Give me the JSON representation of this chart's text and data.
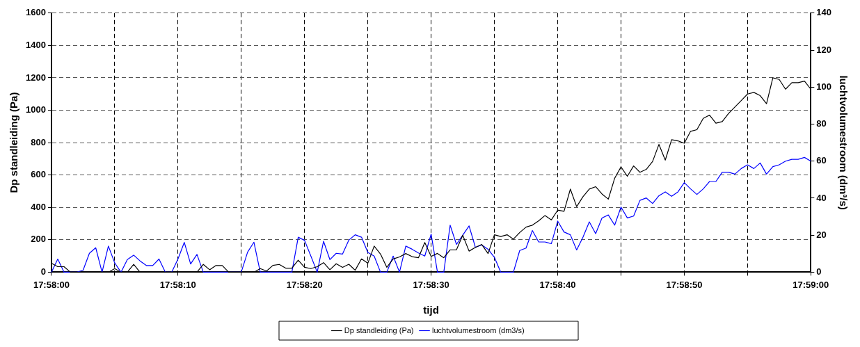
{
  "chart_data": {
    "type": "line",
    "xlabel": "tijd",
    "ylabel": "Dp standleiding (Pa)",
    "y2label": "luchtvolumestroom (dm³/s)",
    "x": [
      17.966667,
      17.966806,
      17.966944,
      17.967083,
      17.967222,
      17.967361,
      17.9675,
      17.967639,
      17.967778,
      17.967917,
      17.968056,
      17.968194,
      17.968333,
      17.968472,
      17.968611,
      17.96875,
      17.968889,
      17.969028,
      17.969167,
      17.969306,
      17.969444,
      17.969583,
      17.969722,
      17.969861,
      17.97,
      17.970139,
      17.970278,
      17.970417,
      17.970556,
      17.970694,
      17.970833,
      17.970972,
      17.971111,
      17.97125,
      17.971389,
      17.971528,
      17.971667,
      17.971806,
      17.971944,
      17.972083,
      17.972222,
      17.972361,
      17.9725,
      17.972639,
      17.972778,
      17.972917,
      17.973056,
      17.973194,
      17.973333,
      17.973472,
      17.973611,
      17.97375,
      17.973889,
      17.974028,
      17.974167,
      17.974306,
      17.974444,
      17.974583,
      17.974722,
      17.974861,
      17.975,
      17.975139,
      17.975278,
      17.975417,
      17.975556,
      17.975694,
      17.975833,
      17.975972,
      17.976111,
      17.97625,
      17.976389,
      17.976528,
      17.976667,
      17.976806,
      17.976944,
      17.977083,
      17.977222,
      17.977361,
      17.9775,
      17.977639,
      17.977778,
      17.977917,
      17.978056,
      17.978194,
      17.978333,
      17.978472,
      17.978611,
      17.97875,
      17.978889,
      17.979028,
      17.979167,
      17.979306,
      17.979444,
      17.979583,
      17.979722,
      17.979861,
      17.98,
      17.980139,
      17.980278,
      17.980417,
      17.980556,
      17.980694,
      17.980833,
      17.980972,
      17.981111,
      17.98125,
      17.981389,
      17.981528,
      17.981667,
      17.981806,
      17.981944,
      17.982083,
      17.982222,
      17.982361,
      17.9825,
      17.982639,
      17.982778,
      17.982917,
      17.983056,
      17.983194,
      17.983333
    ],
    "series": [
      {
        "name": "Dp standleiding (Pa)",
        "color": "#000000",
        "values": [
          55,
          34,
          34,
          0,
          0,
          0,
          0,
          0,
          0,
          0,
          22,
          0,
          0,
          48,
          0,
          0,
          0,
          0,
          0,
          0,
          0,
          0,
          0,
          0,
          48,
          15,
          41,
          41,
          0,
          0,
          0,
          0,
          0,
          22,
          7,
          42,
          48,
          25,
          25,
          74,
          30,
          22,
          34,
          59,
          15,
          52,
          30,
          49,
          12,
          82,
          55,
          161,
          112,
          30,
          82,
          94,
          115,
          96,
          89,
          183,
          97,
          116,
          89,
          138,
          138,
          228,
          130,
          153,
          171,
          115,
          231,
          220,
          231,
          204,
          245,
          278,
          290,
          317,
          350,
          323,
          383,
          376,
          513,
          405,
          466,
          513,
          528,
          483,
          451,
          580,
          650,
          592,
          656,
          617,
          635,
          684,
          789,
          692,
          818,
          811,
          796,
          870,
          880,
          950,
          970,
          920,
          930,
          980,
          1020,
          1060,
          1100,
          1110,
          1090,
          1040,
          1200,
          1190,
          1130,
          1170,
          1170,
          1180,
          1130
        ]
      },
      {
        "name": "luchtvolumestroom (dm3/s)",
        "color": "#0000ff",
        "axis": "y2",
        "values": [
          0,
          7.1,
          0,
          0,
          0,
          1,
          10.2,
          13.2,
          0,
          14.1,
          5,
          0,
          6.8,
          9.2,
          6.1,
          3.6,
          3.6,
          7.1,
          0,
          0,
          7.1,
          16.1,
          4.4,
          9.6,
          0,
          0,
          0,
          0,
          0,
          0,
          0,
          10.8,
          16.2,
          0,
          0,
          0,
          0,
          0,
          0,
          18.9,
          17.2,
          8.7,
          0,
          16.7,
          6.8,
          10.2,
          9.8,
          17.3,
          20.2,
          18.9,
          10.7,
          8.7,
          0,
          0,
          8.7,
          0,
          14.1,
          12.4,
          10.4,
          8.7,
          20.6,
          0,
          0,
          25.4,
          15,
          20,
          25,
          13.4,
          14.7,
          12.4,
          8,
          0,
          0,
          0,
          11.7,
          13,
          22.5,
          16.3,
          16.3,
          15.4,
          27.6,
          21.7,
          20.2,
          12,
          18.9,
          27.2,
          20.8,
          29.3,
          30.9,
          25.4,
          35.2,
          29.3,
          30.3,
          38.8,
          40.1,
          37.1,
          41.3,
          43.4,
          41,
          43.4,
          48.4,
          45,
          42,
          45,
          49,
          49,
          54,
          54,
          53,
          56,
          58,
          56,
          59,
          53,
          57,
          58,
          60,
          61,
          61,
          62,
          60
        ]
      }
    ],
    "xlim": [
      17.966667,
      17.983333
    ],
    "xticks": [
      {
        "value": 17.966667,
        "label": "17:58:00"
      },
      {
        "value": 17.968056,
        "label": null
      },
      {
        "value": 17.969444,
        "label": "17:58:10"
      },
      {
        "value": 17.970833,
        "label": null
      },
      {
        "value": 17.972222,
        "label": "17:58:20"
      },
      {
        "value": 17.973611,
        "label": null
      },
      {
        "value": 17.975,
        "label": "17:58:30"
      },
      {
        "value": 17.976389,
        "label": null
      },
      {
        "value": 17.977778,
        "label": "17:58:40"
      },
      {
        "value": 17.979167,
        "label": null
      },
      {
        "value": 17.980556,
        "label": "17:58:50"
      },
      {
        "value": 17.981944,
        "label": null
      },
      {
        "value": 17.983333,
        "label": "17:59:00"
      }
    ],
    "ylim": [
      0,
      1600
    ],
    "yticks": [
      0,
      200,
      400,
      600,
      800,
      1000,
      1200,
      1400,
      1600
    ],
    "y2lim": [
      0,
      140
    ],
    "y2ticks": [
      0,
      20,
      40,
      60,
      80,
      100,
      120,
      140
    ],
    "grid": true,
    "legend": "bottom"
  }
}
